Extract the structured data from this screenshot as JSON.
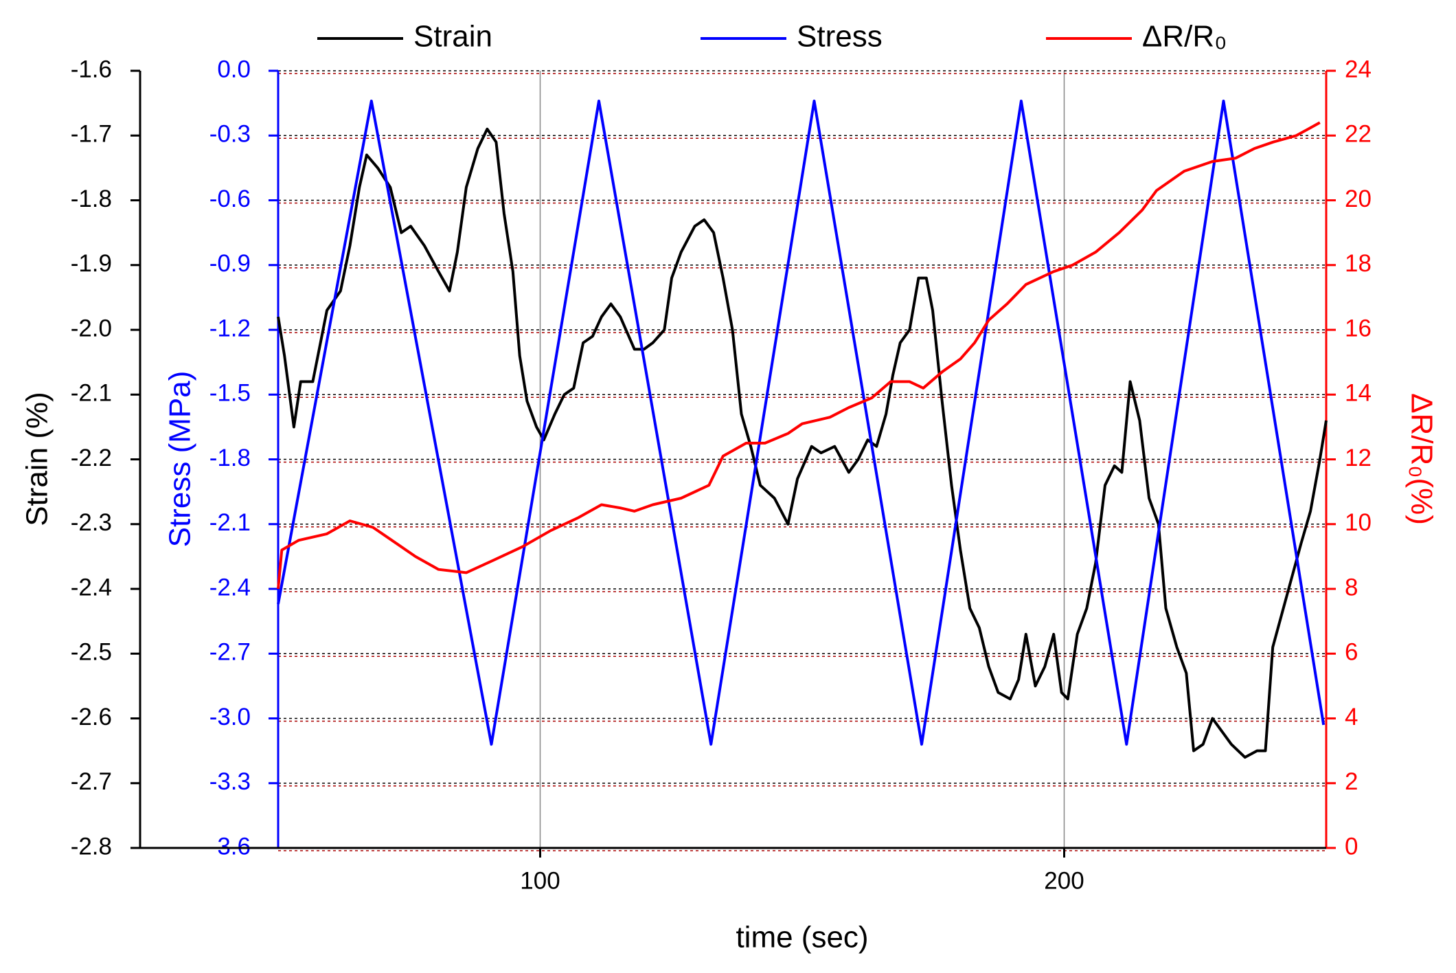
{
  "chart_data": {
    "type": "line",
    "xlabel": "time (sec)",
    "ylabel": "Strain (%)",
    "y2label": "Stress (MPa)",
    "y3label": "ΔR/R₀(%)",
    "xlim": [
      50,
      250
    ],
    "xticks": [
      100,
      200
    ],
    "ylim": [
      -2.8,
      -1.6
    ],
    "yticks": [
      -2.8,
      -2.7,
      -2.6,
      -2.5,
      -2.4,
      -2.3,
      -2.2,
      -2.1,
      {
        "value": -2,
        "label": "-2.0"
      },
      -1.9,
      -1.8,
      -1.7,
      -1.6
    ],
    "y2lim": [
      -3.6,
      0
    ],
    "y2ticks": [
      -3.6,
      -3.3,
      {
        "value": -3,
        "label": "-3.0"
      },
      -2.7,
      -2.4,
      -2.1,
      -1.8,
      -1.5,
      -1.2,
      -0.9,
      -0.6,
      -0.3,
      {
        "value": 0,
        "label": "0.0"
      }
    ],
    "y3lim": [
      0,
      24
    ],
    "y3ticks": [
      0,
      2,
      4,
      6,
      8,
      10,
      12,
      14,
      16,
      18,
      20,
      22,
      24
    ],
    "grid": true,
    "legend": "top",
    "series": [
      {
        "name": "Strain",
        "color": "#000000",
        "axis": "y",
        "x": [
          50,
          51.2,
          53,
          54.3,
          56.6,
          59.3,
          61.9,
          63.7,
          65.5,
          66.9,
          69,
          71.4,
          73.5,
          75.3,
          77.9,
          80.6,
          82.7,
          84.2,
          85.9,
          88.1,
          89.9,
          91.6,
          93.1,
          94.8,
          96.1,
          97.5,
          99.3,
          100.7,
          102.8,
          104.6,
          106.4,
          108.2,
          110,
          111.7,
          113.5,
          115.3,
          118,
          119.8,
          121.5,
          123.7,
          125.1,
          126.9,
          129.5,
          131.3,
          133.1,
          134.9,
          136.7,
          138.4,
          140.2,
          142,
          144.7,
          147.3,
          149.1,
          151.8,
          153.6,
          156.2,
          158.9,
          160.7,
          162.5,
          164.2,
          166,
          167.3,
          168.7,
          170.5,
          172.2,
          173.7,
          174.9,
          176.7,
          178.5,
          180.2,
          182,
          183.8,
          185.6,
          187.4,
          189.7,
          191.3,
          192.7,
          194.5,
          196.3,
          198,
          199.5,
          200.7,
          202.5,
          204.3,
          206,
          207.8,
          209.6,
          211,
          212.6,
          214.4,
          216.2,
          218,
          219.4,
          221.5,
          223.3,
          224.7,
          226.5,
          228.3,
          230.1,
          231.9,
          234.5,
          236.8,
          238.4,
          239.8,
          242.5,
          245.2,
          247,
          248.8,
          250
        ],
        "values": [
          -1.98,
          -2.04,
          -2.15,
          -2.08,
          -2.08,
          -1.97,
          -1.94,
          -1.87,
          -1.78,
          -1.73,
          -1.75,
          -1.78,
          -1.85,
          -1.84,
          -1.87,
          -1.91,
          -1.94,
          -1.88,
          -1.78,
          -1.72,
          -1.69,
          -1.71,
          -1.82,
          -1.91,
          -2.04,
          -2.11,
          -2.15,
          -2.17,
          -2.13,
          -2.1,
          -2.09,
          -2.02,
          -2.01,
          -1.98,
          -1.96,
          -1.98,
          -2.03,
          -2.03,
          -2.02,
          -2,
          -1.92,
          -1.88,
          -1.84,
          -1.83,
          -1.85,
          -1.92,
          -2,
          -2.13,
          -2.18,
          -2.24,
          -2.26,
          -2.3,
          -2.23,
          -2.18,
          -2.19,
          -2.18,
          -2.22,
          -2.2,
          -2.17,
          -2.18,
          -2.13,
          -2.07,
          -2.02,
          -2,
          -1.92,
          -1.92,
          -1.97,
          -2.11,
          -2.24,
          -2.34,
          -2.43,
          -2.46,
          -2.52,
          -2.56,
          -2.57,
          -2.54,
          -2.47,
          -2.55,
          -2.52,
          -2.47,
          -2.56,
          -2.57,
          -2.47,
          -2.43,
          -2.36,
          -2.24,
          -2.21,
          -2.22,
          -2.08,
          -2.14,
          -2.26,
          -2.3,
          -2.43,
          -2.49,
          -2.53,
          -2.65,
          -2.64,
          -2.6,
          -2.62,
          -2.64,
          -2.66,
          -2.65,
          -2.65,
          -2.49,
          -2.41,
          -2.33,
          -2.28,
          -2.2,
          -2.14
        ]
      },
      {
        "name": "Stress",
        "color": "#0000ff",
        "axis": "y2",
        "x": [
          50,
          67.8,
          90.7,
          111.2,
          132.6,
          152.3,
          172.8,
          191.8,
          211.9,
          230.4,
          249.5
        ],
        "values": [
          -2.47,
          -0.14,
          -3.12,
          -0.14,
          -3.12,
          -0.14,
          -3.12,
          -0.14,
          -3.12,
          -0.14,
          -3.03
        ]
      },
      {
        "name": "ΔR/R₀",
        "color": "#ff0000",
        "axis": "y3",
        "x": [
          50,
          50.7,
          53.9,
          59.3,
          63.7,
          68.1,
          71.7,
          76.2,
          80.6,
          85.9,
          91.3,
          96.6,
          102,
          107.3,
          111.7,
          115.3,
          118,
          121.5,
          126.9,
          132.2,
          134.9,
          139.3,
          142.9,
          147.3,
          150,
          155.3,
          158.9,
          163.3,
          166.9,
          170.5,
          173.1,
          176.7,
          180.2,
          182.9,
          185.6,
          189.1,
          192.7,
          198,
          201.6,
          206,
          210.5,
          214.9,
          217.6,
          222.9,
          228.3,
          232.7,
          236.3,
          239.9,
          244.3,
          248.8
        ],
        "values": [
          8,
          9.2,
          9.5,
          9.7,
          10.1,
          9.9,
          9.5,
          9,
          8.6,
          8.5,
          8.9,
          9.3,
          9.8,
          10.2,
          10.6,
          10.5,
          10.4,
          10.6,
          10.8,
          11.2,
          12.1,
          12.5,
          12.5,
          12.8,
          13.1,
          13.3,
          13.6,
          13.9,
          14.4,
          14.4,
          14.2,
          14.7,
          15.1,
          15.6,
          16.3,
          16.8,
          17.4,
          17.8,
          18,
          18.4,
          19,
          19.7,
          20.3,
          20.9,
          21.2,
          21.3,
          21.6,
          21.8,
          22,
          22.4
        ]
      }
    ]
  }
}
